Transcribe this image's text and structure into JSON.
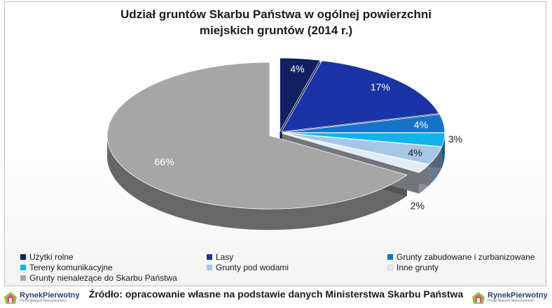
{
  "chart_data": {
    "type": "pie",
    "title_lines": [
      "Udział gruntów Skarbu Państwa w ogólnej powierzchni",
      "miejskich gruntów (2014 r.)"
    ],
    "slices": [
      {
        "label": "Użytki rolne",
        "value": 4,
        "value_label": "4%",
        "color": "#102060"
      },
      {
        "label": "Lasy",
        "value": 17,
        "value_label": "17%",
        "color": "#1a33a6"
      },
      {
        "label": "Grunty zabudowane i zurbanizowane",
        "value": 4,
        "value_label": "4%",
        "color": "#1673c8"
      },
      {
        "label": "Tereny komunikacyjne",
        "value": 3,
        "value_label": "3%",
        "color": "#12b3ea"
      },
      {
        "label": "Grunty pod wodami",
        "value": 4,
        "value_label": "4%",
        "color": "#a6c6e6"
      },
      {
        "label": "Inne grunty",
        "value": 2,
        "value_label": "2%",
        "color": "#e3ecf6"
      },
      {
        "label": "Grunty nienależące do Skarbu Państwa",
        "value": 66,
        "value_label": "66%",
        "color": "#a7a6a6"
      }
    ],
    "legend_position": "bottom"
  },
  "source": "Źródło: opracowanie własne na podstawie danych Ministerstwa Skarbu Państwa",
  "logo": {
    "name": "RynekPierwotny",
    "tagline": "Portal Nowych Nieruchomości"
  }
}
